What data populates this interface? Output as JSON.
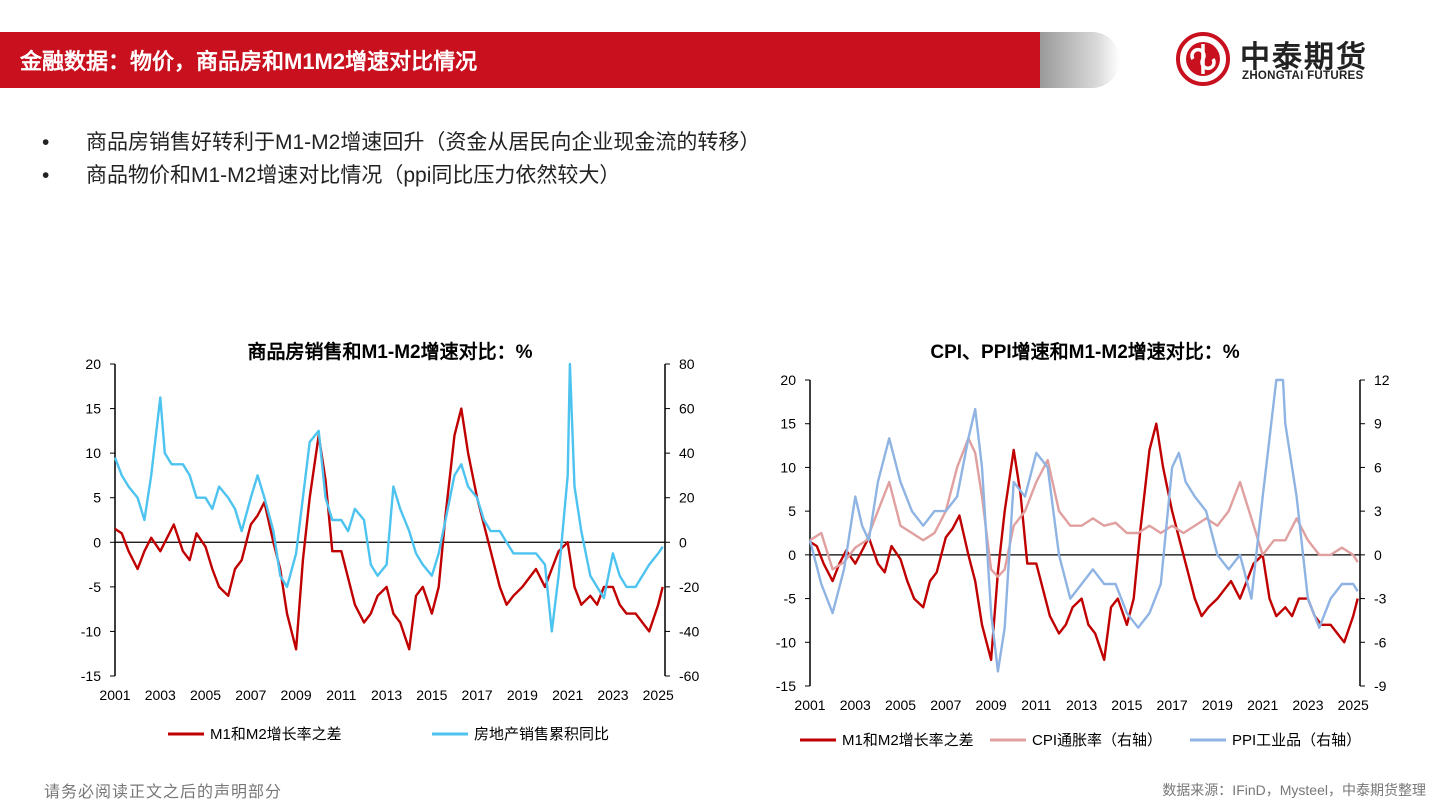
{
  "header": {
    "title": "金融数据：物价，商品房和M1M2增速对比情况",
    "logo_cn": "中泰期货",
    "logo_en": "ZHONGTAI FUTURES",
    "accent": "#c8101e"
  },
  "bullets": [
    "商品房销售好转利于M1-M2增速回升（资金从居民向企业现金流的转移）",
    "商品物价和M1-M2增速对比情况（ppi同比压力依然较大）"
  ],
  "footer": {
    "disclaimer": "请务必阅读正文之后的声明部分",
    "source": "数据来源：IFinD，Mysteel，中泰期货整理"
  },
  "chart_data": [
    {
      "type": "line",
      "title": "商品房销售和M1-M2增速对比：%",
      "x_ticks": [
        "2001",
        "2003",
        "2005",
        "2007",
        "2009",
        "2011",
        "2013",
        "2015",
        "2017",
        "2019",
        "2021",
        "2023",
        "2025"
      ],
      "xlim": [
        2001,
        2025.3
      ],
      "ylim_left": [
        -15,
        20
      ],
      "yticks_left": [
        "20",
        "15",
        "10",
        "5",
        "0",
        "-5",
        "-10",
        "-15"
      ],
      "ylim_right": [
        -60,
        80
      ],
      "yticks_right": [
        "80",
        "60",
        "40",
        "20",
        "0",
        "-20",
        "-40",
        "-60"
      ],
      "legend_position": "bottom",
      "series": [
        {
          "name": "M1和M2增长率之差",
          "axis": "left",
          "color": "#c00000",
          "x": [
            2001,
            2001.3,
            2001.6,
            2002,
            2002.3,
            2002.6,
            2003,
            2003.3,
            2003.6,
            2004,
            2004.3,
            2004.6,
            2005,
            2005.3,
            2005.6,
            2006,
            2006.3,
            2006.6,
            2007,
            2007.3,
            2007.6,
            2008,
            2008.3,
            2008.6,
            2009,
            2009.3,
            2009.6,
            2010,
            2010.3,
            2010.6,
            2011,
            2011.3,
            2011.6,
            2012,
            2012.3,
            2012.6,
            2013,
            2013.3,
            2013.6,
            2014,
            2014.3,
            2014.6,
            2015,
            2015.3,
            2015.6,
            2016,
            2016.3,
            2016.6,
            2017,
            2017.3,
            2017.6,
            2018,
            2018.3,
            2018.6,
            2019,
            2019.3,
            2019.6,
            2020,
            2020.3,
            2020.6,
            2021,
            2021.3,
            2021.6,
            2022,
            2022.3,
            2022.6,
            2023,
            2023.3,
            2023.6,
            2024,
            2024.3,
            2024.6,
            2025,
            2025.2
          ],
          "y": [
            1.5,
            1,
            -1,
            -3,
            -1,
            0.5,
            -1,
            0.5,
            2,
            -1,
            -2,
            1,
            -0.5,
            -3,
            -5,
            -6,
            -3,
            -2,
            2,
            3,
            4.5,
            0,
            -3,
            -8,
            -12,
            -2,
            5,
            12,
            7,
            -1,
            -1,
            -4,
            -7,
            -9,
            -8,
            -6,
            -5,
            -8,
            -9,
            -12,
            -6,
            -5,
            -8,
            -5,
            3,
            12,
            15,
            10,
            5,
            2,
            -1,
            -5,
            -7,
            -6,
            -5,
            -4,
            -3,
            -5,
            -3,
            -1,
            0,
            -5,
            -7,
            -6,
            -7,
            -5,
            -5,
            -7,
            -8,
            -8,
            -9,
            -10,
            -7,
            -5
          ]
        },
        {
          "name": "房地产销售累积同比",
          "axis": "right",
          "color": "#4dc3f0",
          "x": [
            2001,
            2001.3,
            2001.6,
            2002,
            2002.3,
            2002.6,
            2003,
            2003.2,
            2003.5,
            2004,
            2004.3,
            2004.6,
            2005,
            2005.3,
            2005.6,
            2006,
            2006.3,
            2006.6,
            2007,
            2007.3,
            2007.6,
            2008,
            2008.3,
            2008.6,
            2009,
            2009.3,
            2009.6,
            2010,
            2010.3,
            2010.6,
            2011,
            2011.3,
            2011.6,
            2012,
            2012.3,
            2012.6,
            2013,
            2013.3,
            2013.6,
            2014,
            2014.3,
            2014.6,
            2015,
            2015.3,
            2015.6,
            2016,
            2016.3,
            2016.6,
            2017,
            2017.3,
            2017.6,
            2018,
            2018.3,
            2018.6,
            2019,
            2019.3,
            2019.6,
            2020,
            2020.3,
            2020.6,
            2021,
            2021.1,
            2021.3,
            2021.6,
            2022,
            2022.3,
            2022.6,
            2023,
            2023.3,
            2023.6,
            2024,
            2024.3,
            2024.6,
            2025,
            2025.2
          ],
          "y": [
            38,
            30,
            25,
            20,
            10,
            30,
            65,
            40,
            35,
            35,
            30,
            20,
            20,
            15,
            25,
            20,
            15,
            5,
            20,
            30,
            20,
            5,
            -15,
            -20,
            -5,
            20,
            45,
            50,
            20,
            10,
            10,
            5,
            15,
            10,
            -10,
            -15,
            -10,
            25,
            15,
            5,
            -5,
            -10,
            -15,
            -5,
            10,
            30,
            35,
            25,
            20,
            10,
            5,
            5,
            0,
            -5,
            -5,
            -5,
            -5,
            -10,
            -40,
            -15,
            30,
            80,
            25,
            5,
            -15,
            -20,
            -25,
            -5,
            -15,
            -20,
            -20,
            -15,
            -10,
            -5,
            -2
          ]
        }
      ]
    },
    {
      "type": "line",
      "title": "CPI、PPI增速和M1-M2增速对比：%",
      "x_ticks": [
        "2001",
        "2003",
        "2005",
        "2007",
        "2009",
        "2011",
        "2013",
        "2015",
        "2017",
        "2019",
        "2021",
        "2023",
        "2025"
      ],
      "xlim": [
        2001,
        2025.3
      ],
      "ylim_left": [
        -15,
        20
      ],
      "yticks_left": [
        "20",
        "15",
        "10",
        "5",
        "0",
        "-5",
        "-10",
        "-15"
      ],
      "ylim_right": [
        -9,
        12
      ],
      "yticks_right": [
        "12",
        "9",
        "6",
        "3",
        "0",
        "-3",
        "-6",
        "-9"
      ],
      "legend_position": "bottom",
      "series": [
        {
          "name": "M1和M2增长率之差",
          "axis": "left",
          "color": "#c00000",
          "x": [
            2001,
            2001.3,
            2001.6,
            2002,
            2002.3,
            2002.6,
            2003,
            2003.3,
            2003.6,
            2004,
            2004.3,
            2004.6,
            2005,
            2005.3,
            2005.6,
            2006,
            2006.3,
            2006.6,
            2007,
            2007.3,
            2007.6,
            2008,
            2008.3,
            2008.6,
            2009,
            2009.3,
            2009.6,
            2010,
            2010.3,
            2010.6,
            2011,
            2011.3,
            2011.6,
            2012,
            2012.3,
            2012.6,
            2013,
            2013.3,
            2013.6,
            2014,
            2014.3,
            2014.6,
            2015,
            2015.3,
            2015.6,
            2016,
            2016.3,
            2016.6,
            2017,
            2017.3,
            2017.6,
            2018,
            2018.3,
            2018.6,
            2019,
            2019.3,
            2019.6,
            2020,
            2020.3,
            2020.6,
            2021,
            2021.3,
            2021.6,
            2022,
            2022.3,
            2022.6,
            2023,
            2023.3,
            2023.6,
            2024,
            2024.3,
            2024.6,
            2025,
            2025.2
          ],
          "y": [
            1.5,
            1,
            -1,
            -3,
            -1,
            0.5,
            -1,
            0.5,
            2,
            -1,
            -2,
            1,
            -0.5,
            -3,
            -5,
            -6,
            -3,
            -2,
            2,
            3,
            4.5,
            0,
            -3,
            -8,
            -12,
            -2,
            5,
            12,
            7,
            -1,
            -1,
            -4,
            -7,
            -9,
            -8,
            -6,
            -5,
            -8,
            -9,
            -12,
            -6,
            -5,
            -8,
            -5,
            3,
            12,
            15,
            10,
            5,
            2,
            -1,
            -5,
            -7,
            -6,
            -5,
            -4,
            -3,
            -5,
            -3,
            -1,
            0,
            -5,
            -7,
            -6,
            -7,
            -5,
            -5,
            -7,
            -8,
            -8,
            -9,
            -10,
            -7,
            -5
          ]
        },
        {
          "name": "CPI通胀率（右轴）",
          "axis": "right",
          "color": "#e0a0a0",
          "x": [
            2001,
            2001.5,
            2002,
            2002.5,
            2003,
            2003.5,
            2004,
            2004.5,
            2005,
            2005.5,
            2006,
            2006.5,
            2007,
            2007.5,
            2008,
            2008.3,
            2008.6,
            2009,
            2009.3,
            2009.6,
            2010,
            2010.5,
            2011,
            2011.5,
            2012,
            2012.5,
            2013,
            2013.5,
            2014,
            2014.5,
            2015,
            2015.5,
            2016,
            2016.5,
            2017,
            2017.5,
            2018,
            2018.5,
            2019,
            2019.5,
            2020,
            2020.5,
            2021,
            2021.5,
            2022,
            2022.5,
            2023,
            2023.5,
            2024,
            2024.5,
            2025,
            2025.2
          ],
          "y": [
            1,
            1.5,
            -1,
            -0.5,
            0.5,
            1,
            3,
            5,
            2,
            1.5,
            1,
            1.5,
            3,
            6,
            8,
            7,
            4,
            -1,
            -1.5,
            -1,
            2,
            3,
            5,
            6.5,
            3,
            2,
            2,
            2.5,
            2,
            2.2,
            1.5,
            1.5,
            2,
            1.5,
            2,
            1.5,
            2,
            2.5,
            2,
            3,
            5,
            2.5,
            0,
            1,
            1,
            2.5,
            1,
            0,
            0,
            0.5,
            0,
            -0.5
          ]
        },
        {
          "name": "PPI工业品（右轴）",
          "axis": "right",
          "color": "#8fb4e3",
          "x": [
            2001,
            2001.5,
            2002,
            2002.5,
            2003,
            2003.3,
            2003.6,
            2004,
            2004.5,
            2005,
            2005.5,
            2006,
            2006.5,
            2007,
            2007.5,
            2008,
            2008.3,
            2008.6,
            2009,
            2009.3,
            2009.6,
            2010,
            2010.5,
            2011,
            2011.5,
            2012,
            2012.5,
            2013,
            2013.5,
            2014,
            2014.5,
            2015,
            2015.5,
            2016,
            2016.5,
            2017,
            2017.3,
            2017.6,
            2018,
            2018.5,
            2019,
            2019.5,
            2020,
            2020.5,
            2021,
            2021.3,
            2021.6,
            2021.9,
            2022,
            2022.5,
            2023,
            2023.5,
            2024,
            2024.5,
            2025,
            2025.2
          ],
          "y": [
            1,
            -2,
            -4,
            -1,
            4,
            2,
            1,
            5,
            8,
            5,
            3,
            2,
            3,
            3,
            4,
            8,
            10,
            6,
            -4,
            -8,
            -5,
            5,
            4,
            7,
            6,
            0,
            -3,
            -2,
            -1,
            -2,
            -2,
            -4,
            -5,
            -4,
            -2,
            6,
            7,
            5,
            4,
            3,
            0,
            -1,
            0,
            -3,
            4,
            8,
            12,
            13,
            9,
            4,
            -3,
            -5,
            -3,
            -2,
            -2,
            -2.5
          ]
        }
      ]
    }
  ]
}
